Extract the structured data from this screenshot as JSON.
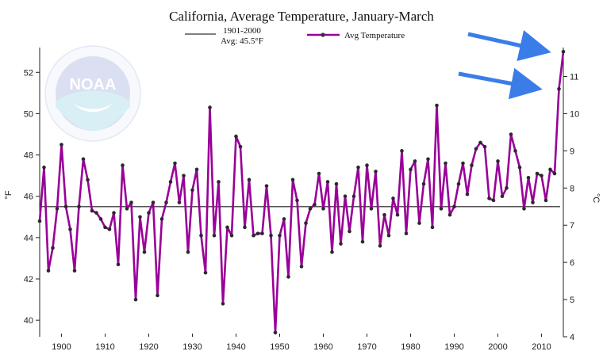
{
  "chart_data": {
    "type": "line",
    "title": "California, Average Temperature, January-March",
    "ylabel_left": "°F",
    "ylabel_right": "°C",
    "xlim": [
      1895,
      2015
    ],
    "ylim": [
      39.2,
      53.2
    ],
    "ylim_celsius": [
      4,
      11.78
    ],
    "x_ticks": [
      1900,
      1910,
      1920,
      1930,
      1940,
      1950,
      1960,
      1970,
      1980,
      1990,
      2000,
      2010
    ],
    "y_ticks_f": [
      40,
      42,
      44,
      46,
      48,
      50,
      52
    ],
    "y_ticks_c": [
      4,
      5,
      6,
      7,
      8,
      9,
      10,
      11
    ],
    "baseline": {
      "label": "1901-2000",
      "sublabel": "Avg: 45.5°F",
      "value": 45.5,
      "color": "#555555"
    },
    "series": [
      {
        "name": "Avg Temperature",
        "color": "#990099",
        "x": [
          1895,
          1896,
          1897,
          1898,
          1899,
          1900,
          1901,
          1902,
          1903,
          1904,
          1905,
          1906,
          1907,
          1908,
          1909,
          1910,
          1911,
          1912,
          1913,
          1914,
          1915,
          1916,
          1917,
          1918,
          1919,
          1920,
          1921,
          1922,
          1923,
          1924,
          1925,
          1926,
          1927,
          1928,
          1929,
          1930,
          1931,
          1932,
          1933,
          1934,
          1935,
          1936,
          1937,
          1938,
          1939,
          1940,
          1941,
          1942,
          1943,
          1944,
          1945,
          1946,
          1947,
          1948,
          1949,
          1950,
          1951,
          1952,
          1953,
          1954,
          1955,
          1956,
          1957,
          1958,
          1959,
          1960,
          1961,
          1962,
          1963,
          1964,
          1965,
          1966,
          1967,
          1968,
          1969,
          1970,
          1971,
          1972,
          1973,
          1974,
          1975,
          1976,
          1977,
          1978,
          1979,
          1980,
          1981,
          1982,
          1983,
          1984,
          1985,
          1986,
          1987,
          1988,
          1989,
          1990,
          1991,
          1992,
          1993,
          1994,
          1995,
          1996,
          1997,
          1998,
          1999,
          2000,
          2001,
          2002,
          2003,
          2004,
          2005,
          2006,
          2007,
          2008,
          2009,
          2010,
          2011,
          2012,
          2013,
          2014,
          2015
        ],
        "values": [
          44.8,
          47.4,
          42.4,
          43.5,
          45.4,
          48.5,
          45.5,
          44.4,
          42.4,
          45.5,
          47.8,
          46.8,
          45.3,
          45.2,
          44.9,
          44.5,
          44.4,
          45.2,
          42.7,
          47.5,
          45.4,
          45.7,
          41.0,
          45.0,
          43.3,
          45.2,
          45.7,
          41.2,
          44.9,
          45.7,
          46.7,
          47.6,
          45.7,
          47.0,
          43.3,
          46.3,
          47.3,
          44.1,
          42.3,
          50.3,
          44.1,
          46.7,
          40.8,
          44.5,
          44.1,
          48.9,
          48.4,
          44.5,
          46.8,
          44.1,
          44.2,
          44.2,
          46.5,
          44.1,
          39.4,
          44.1,
          44.9,
          42.1,
          46.8,
          45.8,
          42.6,
          44.7,
          45.4,
          45.6,
          47.1,
          45.4,
          46.7,
          43.3,
          46.6,
          43.7,
          46.0,
          44.3,
          46.0,
          47.4,
          43.8,
          47.5,
          45.4,
          47.2,
          43.6,
          45.1,
          44.1,
          45.9,
          45.1,
          48.2,
          44.2,
          47.3,
          47.7,
          44.7,
          46.6,
          47.8,
          44.5,
          50.4,
          45.4,
          47.6,
          45.1,
          45.5,
          46.6,
          47.6,
          46.1,
          47.5,
          48.3,
          48.6,
          48.4,
          45.9,
          45.8,
          47.7,
          46.0,
          46.4,
          49.0,
          48.2,
          47.4,
          45.4,
          46.9,
          45.7,
          47.1,
          47.0,
          45.8,
          47.3,
          47.1,
          51.2,
          53.0
        ]
      }
    ],
    "annotations": [
      "arrow pointing to 2015 value (upper right)",
      "arrow pointing to 2014 value"
    ],
    "grid": false,
    "legend": "top"
  },
  "logo": {
    "name": "noaa-logo",
    "text": "NOAA"
  }
}
